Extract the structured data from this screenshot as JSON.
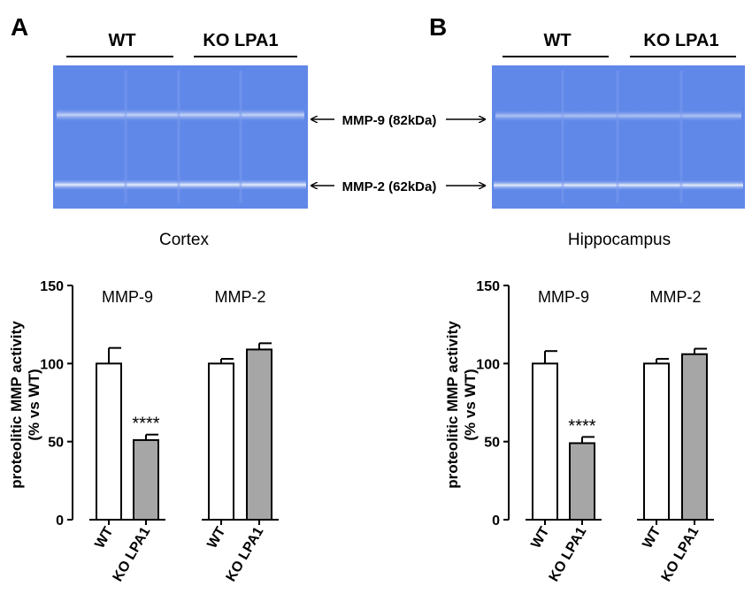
{
  "panels": [
    {
      "letter": "A",
      "gel_header": {
        "left_group": "WT",
        "right_group": "KO LPA1"
      },
      "band_labels": [
        "MMP-9 (82kDa)",
        "MMP-2 (62kDa)"
      ],
      "region": "Cortex"
    },
    {
      "letter": "B",
      "gel_header": {
        "left_group": "WT",
        "right_group": "KO LPA1"
      },
      "band_labels": [
        "MMP-9 (82kDa)",
        "MMP-2 (62kDa)"
      ],
      "region": "Hippocampus"
    }
  ],
  "colors": {
    "gel_blue": "#5b84e6",
    "gel_band": "#e8eefc",
    "bar_ko": "#a6a6a6",
    "bar_wt": "#ffffff",
    "axis": "#000000"
  },
  "chart_data": [
    {
      "type": "bar",
      "region": "Cortex",
      "ylabel_line1": "proteolitic MMP activity",
      "ylabel_line2": "(% vs WT)",
      "ylim": [
        0,
        150
      ],
      "yticks": [
        "0",
        "50",
        "100",
        "150"
      ],
      "groups": [
        {
          "label": "MMP-9",
          "bars": [
            {
              "category": "WT",
              "value": 100,
              "error": 10,
              "fill": "white"
            },
            {
              "category": "KO LPA1",
              "value": 51,
              "error": 3.5,
              "fill": "grey",
              "annotation": "****"
            }
          ]
        },
        {
          "label": "MMP-2",
          "bars": [
            {
              "category": "WT",
              "value": 100,
              "error": 3,
              "fill": "white"
            },
            {
              "category": "KO LPA1",
              "value": 109,
              "error": 4,
              "fill": "grey"
            }
          ]
        }
      ]
    },
    {
      "type": "bar",
      "region": "Hippocampus",
      "ylabel_line1": "proteolitic MMP activity",
      "ylabel_line2": "(% vs WT)",
      "ylim": [
        0,
        150
      ],
      "yticks": [
        "0",
        "50",
        "100",
        "150"
      ],
      "groups": [
        {
          "label": "MMP-9",
          "bars": [
            {
              "category": "WT",
              "value": 100,
              "error": 8,
              "fill": "white"
            },
            {
              "category": "KO LPA1",
              "value": 49,
              "error": 4,
              "fill": "grey",
              "annotation": "****"
            }
          ]
        },
        {
          "label": "MMP-2",
          "bars": [
            {
              "category": "WT",
              "value": 100,
              "error": 3,
              "fill": "white"
            },
            {
              "category": "KO LPA1",
              "value": 106,
              "error": 3.5,
              "fill": "grey"
            }
          ]
        }
      ]
    }
  ]
}
